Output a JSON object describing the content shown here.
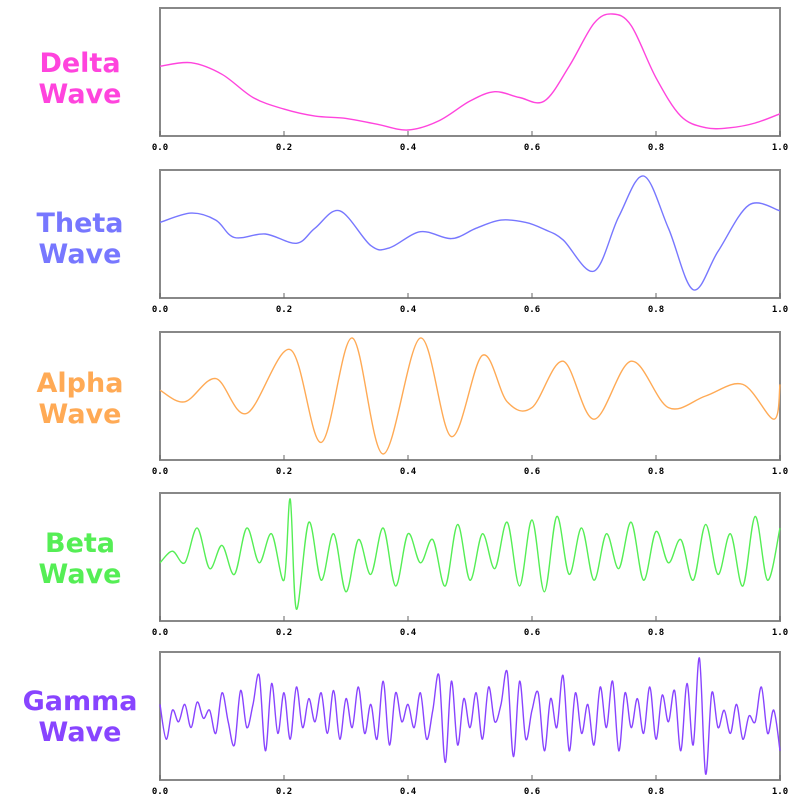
{
  "chart_data": [
    {
      "type": "line",
      "label_line1": "Delta",
      "label_line2": "Wave",
      "color": "#ff44dd",
      "xlim": [
        0.0,
        1.0
      ],
      "xticks": [
        "0.0",
        "0.2",
        "0.4",
        "0.6",
        "0.8",
        "1.0"
      ],
      "x": [
        0.0,
        0.05,
        0.1,
        0.15,
        0.2,
        0.25,
        0.3,
        0.35,
        0.4,
        0.45,
        0.5,
        0.54,
        0.58,
        0.62,
        0.66,
        0.7,
        0.73,
        0.76,
        0.8,
        0.84,
        0.88,
        0.92,
        0.96,
        1.0
      ],
      "y": [
        0.55,
        0.58,
        0.48,
        0.28,
        0.18,
        0.12,
        0.1,
        0.05,
        0.0,
        0.08,
        0.25,
        0.33,
        0.28,
        0.25,
        0.55,
        0.92,
        1.0,
        0.9,
        0.45,
        0.12,
        0.02,
        0.02,
        0.06,
        0.14
      ]
    },
    {
      "type": "line",
      "label_line1": "Theta",
      "label_line2": "Wave",
      "color": "#7777ff",
      "xlim": [
        0.0,
        1.0
      ],
      "xticks": [
        "0.0",
        "0.2",
        "0.4",
        "0.6",
        "0.8",
        "1.0"
      ],
      "x": [
        0.0,
        0.05,
        0.09,
        0.12,
        0.17,
        0.22,
        0.25,
        0.29,
        0.34,
        0.37,
        0.42,
        0.47,
        0.51,
        0.55,
        0.59,
        0.62,
        0.65,
        0.7,
        0.74,
        0.78,
        0.82,
        0.86,
        0.9,
        0.95,
        1.0
      ],
      "y": [
        0.6,
        0.68,
        0.62,
        0.47,
        0.5,
        0.42,
        0.55,
        0.7,
        0.4,
        0.38,
        0.52,
        0.46,
        0.55,
        0.62,
        0.6,
        0.54,
        0.45,
        0.18,
        0.65,
        1.0,
        0.55,
        0.02,
        0.35,
        0.75,
        0.7
      ]
    },
    {
      "type": "line",
      "label_line1": "Alpha",
      "label_line2": "Wave",
      "color": "#ffaa55",
      "xlim": [
        0.0,
        1.0
      ],
      "xticks": [
        "0.0",
        "0.2",
        "0.4",
        "0.6",
        "0.8",
        "1.0"
      ],
      "x": [
        0.0,
        0.04,
        0.09,
        0.14,
        0.21,
        0.26,
        0.31,
        0.36,
        0.42,
        0.47,
        0.52,
        0.56,
        0.6,
        0.65,
        0.7,
        0.76,
        0.82,
        0.88,
        0.94,
        0.99,
        1.0
      ],
      "y": [
        0.55,
        0.45,
        0.65,
        0.35,
        0.9,
        0.1,
        1.0,
        0.0,
        1.0,
        0.15,
        0.85,
        0.45,
        0.4,
        0.8,
        0.3,
        0.8,
        0.4,
        0.5,
        0.6,
        0.3,
        0.6
      ]
    },
    {
      "type": "line",
      "label_line1": "Beta",
      "label_line2": "Wave",
      "color": "#55ee55",
      "xlim": [
        0.0,
        1.0
      ],
      "xticks": [
        "0.0",
        "0.2",
        "0.4",
        "0.6",
        "0.8",
        "1.0"
      ],
      "x": [
        0.0,
        0.02,
        0.04,
        0.06,
        0.08,
        0.1,
        0.12,
        0.14,
        0.16,
        0.18,
        0.2,
        0.21,
        0.22,
        0.24,
        0.26,
        0.28,
        0.3,
        0.32,
        0.34,
        0.36,
        0.38,
        0.4,
        0.42,
        0.44,
        0.46,
        0.48,
        0.5,
        0.52,
        0.54,
        0.56,
        0.58,
        0.6,
        0.62,
        0.64,
        0.66,
        0.68,
        0.7,
        0.72,
        0.74,
        0.76,
        0.78,
        0.8,
        0.82,
        0.84,
        0.86,
        0.88,
        0.9,
        0.92,
        0.94,
        0.96,
        0.98,
        1.0
      ],
      "y": [
        0.45,
        0.55,
        0.45,
        0.75,
        0.4,
        0.6,
        0.35,
        0.75,
        0.45,
        0.7,
        0.3,
        1.0,
        0.05,
        0.8,
        0.3,
        0.7,
        0.2,
        0.65,
        0.35,
        0.75,
        0.25,
        0.7,
        0.45,
        0.65,
        0.25,
        0.78,
        0.3,
        0.7,
        0.4,
        0.8,
        0.25,
        0.82,
        0.2,
        0.85,
        0.35,
        0.75,
        0.3,
        0.7,
        0.4,
        0.8,
        0.3,
        0.72,
        0.45,
        0.65,
        0.3,
        0.78,
        0.35,
        0.7,
        0.25,
        0.85,
        0.3,
        0.75
      ]
    },
    {
      "type": "line",
      "label_line1": "Gamma",
      "label_line2": "Wave",
      "color": "#8844ff",
      "xlim": [
        0.0,
        1.0
      ],
      "xticks": [
        "0.0",
        "0.2",
        "0.4",
        "0.6",
        "0.8",
        "1.0"
      ],
      "x": [
        0.0,
        0.01,
        0.02,
        0.03,
        0.04,
        0.05,
        0.06,
        0.07,
        0.08,
        0.09,
        0.1,
        0.11,
        0.12,
        0.13,
        0.14,
        0.15,
        0.16,
        0.17,
        0.18,
        0.19,
        0.2,
        0.21,
        0.22,
        0.23,
        0.24,
        0.25,
        0.26,
        0.27,
        0.28,
        0.29,
        0.3,
        0.31,
        0.32,
        0.33,
        0.34,
        0.35,
        0.36,
        0.37,
        0.38,
        0.39,
        0.4,
        0.41,
        0.42,
        0.43,
        0.44,
        0.45,
        0.46,
        0.47,
        0.48,
        0.49,
        0.5,
        0.51,
        0.52,
        0.53,
        0.54,
        0.55,
        0.56,
        0.57,
        0.58,
        0.59,
        0.6,
        0.61,
        0.62,
        0.63,
        0.64,
        0.65,
        0.66,
        0.67,
        0.68,
        0.69,
        0.7,
        0.71,
        0.72,
        0.73,
        0.74,
        0.75,
        0.76,
        0.77,
        0.78,
        0.79,
        0.8,
        0.81,
        0.82,
        0.83,
        0.84,
        0.85,
        0.86,
        0.87,
        0.88,
        0.89,
        0.9,
        0.91,
        0.92,
        0.93,
        0.94,
        0.95,
        0.96,
        0.97,
        0.98,
        0.99,
        1.0
      ],
      "y": [
        0.6,
        0.3,
        0.55,
        0.45,
        0.6,
        0.4,
        0.62,
        0.48,
        0.55,
        0.35,
        0.7,
        0.45,
        0.25,
        0.72,
        0.4,
        0.6,
        0.85,
        0.2,
        0.78,
        0.35,
        0.7,
        0.3,
        0.75,
        0.4,
        0.65,
        0.45,
        0.7,
        0.35,
        0.72,
        0.3,
        0.65,
        0.4,
        0.75,
        0.35,
        0.6,
        0.3,
        0.8,
        0.25,
        0.7,
        0.45,
        0.6,
        0.4,
        0.7,
        0.3,
        0.55,
        0.85,
        0.1,
        0.8,
        0.25,
        0.65,
        0.4,
        0.7,
        0.3,
        0.75,
        0.45,
        0.6,
        0.88,
        0.15,
        0.8,
        0.3,
        0.55,
        0.7,
        0.2,
        0.65,
        0.4,
        0.85,
        0.2,
        0.7,
        0.35,
        0.6,
        0.25,
        0.75,
        0.4,
        0.8,
        0.2,
        0.7,
        0.4,
        0.65,
        0.35,
        0.75,
        0.3,
        0.68,
        0.45,
        0.72,
        0.2,
        0.78,
        0.25,
        1.0,
        0.0,
        0.7,
        0.4,
        0.55,
        0.35,
        0.6,
        0.3,
        0.5,
        0.45,
        0.75,
        0.35,
        0.55,
        0.2
      ]
    }
  ]
}
